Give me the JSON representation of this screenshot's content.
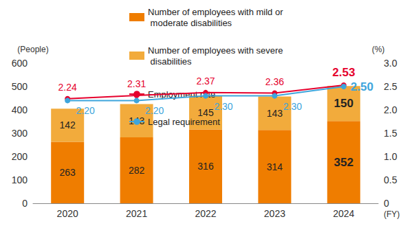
{
  "chart_data": {
    "type": "bar",
    "categories": [
      "2020",
      "2021",
      "2022",
      "2023",
      "2024"
    ],
    "xlabel": "(FY)",
    "ylabel": "(People)",
    "y2label": "(%)",
    "ylim": [
      0,
      600
    ],
    "yticks": [
      0,
      100,
      200,
      300,
      400,
      500,
      600
    ],
    "y2lim": [
      0,
      3
    ],
    "y2ticks": [
      0,
      0.5,
      {
        "value": 1,
        "label": "1.0"
      },
      1.5,
      {
        "value": 2,
        "label": "2.0"
      },
      2.5,
      {
        "value": 3,
        "label": "3.0"
      }
    ],
    "stacked": true,
    "data_labels": true,
    "grid": false,
    "legend": "top",
    "series": [
      {
        "name": "Number of employees with mild or moderate disabilities",
        "type": "bar",
        "color": "#ef7d00",
        "values": [
          263,
          282,
          316,
          314,
          352
        ]
      },
      {
        "name": "Number of employees with severe disabilities",
        "type": "bar",
        "color": "#f2ab3c",
        "values": [
          142,
          143,
          145,
          143,
          150
        ]
      },
      {
        "name": "Employment rate",
        "type": "line",
        "axis": "y2",
        "color": "#e5002d",
        "marker": "circle",
        "values": [
          2.24,
          2.31,
          2.37,
          2.36,
          2.53
        ]
      },
      {
        "name": "Legal requirement",
        "type": "line",
        "axis": "y2",
        "color": "#3ea5dc",
        "marker": "circle",
        "values": [
          2.2,
          2.2,
          2.3,
          2.3,
          2.5
        ],
        "value_labels": [
          "2.20",
          "2.20",
          "2.30",
          "2.30",
          "2.50"
        ]
      }
    ]
  }
}
